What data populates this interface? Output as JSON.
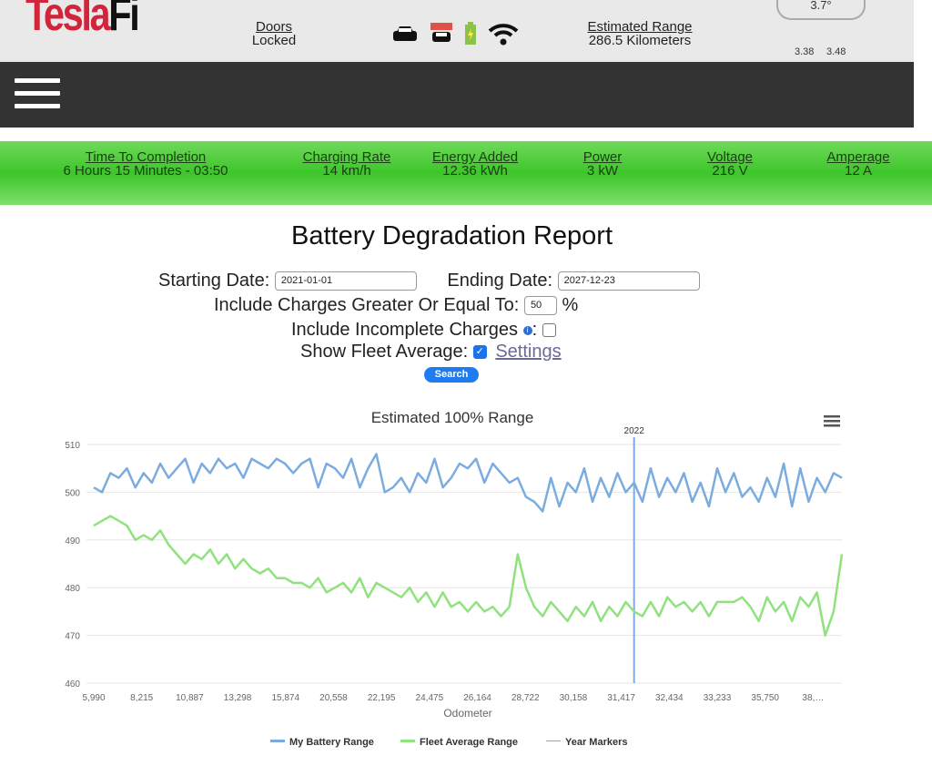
{
  "header": {
    "logo_a": "Tesla",
    "logo_b": "Fi",
    "doors_label": "Doors",
    "doors_value": "Locked",
    "range_label": "Estimated Range",
    "range_value": "286.5 Kilometers",
    "temp": "3.7°",
    "tire_left": "3.38",
    "tire_right": "3.48",
    "icons": [
      "car-icon",
      "calendar-car-icon",
      "battery-charging-icon",
      "wifi-icon"
    ]
  },
  "charging": [
    {
      "label": "Time To Completion",
      "value": "6 Hours 15 Minutes - 03:50"
    },
    {
      "label": "Charging Rate",
      "value": "14 km/h"
    },
    {
      "label": "Energy Added",
      "value": "12.36 kWh"
    },
    {
      "label": "Power",
      "value": "3 kW"
    },
    {
      "label": "Voltage",
      "value": "216 V"
    },
    {
      "label": "Amperage",
      "value": "12 A"
    }
  ],
  "report": {
    "title": "Battery Degradation Report",
    "start_label": "Starting Date:",
    "start_value": "2021-01-01",
    "end_label": "Ending Date:",
    "end_value": "2027-12-23",
    "charges_label": "Include Charges Greater Or Equal To:",
    "charges_value": "50",
    "pct": "%",
    "incomplete_label": "Include Incomplete Charges",
    "info": "i",
    "colon": ":",
    "fleet_label": "Show Fleet Average:",
    "fleet_checked": true,
    "settings": "Settings",
    "search": "Search"
  },
  "chart_data": {
    "type": "line",
    "title": "Estimated 100% Range",
    "xlabel": "Odometer",
    "ylabel": "",
    "ylim": [
      460,
      510
    ],
    "yticks": [
      460,
      470,
      480,
      490,
      500,
      510
    ],
    "xtick_labels": [
      "5,990",
      "8,215",
      "10,887",
      "13,298",
      "15,874",
      "20,558",
      "22,195",
      "24,475",
      "26,164",
      "28,722",
      "30,158",
      "31,417",
      "32,434",
      "33,233",
      "35,750",
      "38,…"
    ],
    "series": [
      {
        "name": "My Battery Range",
        "color": "#7cacdf",
        "values": [
          501,
          500,
          504,
          503,
          505,
          501,
          504,
          502,
          506,
          503,
          505,
          507,
          502,
          506,
          504,
          507,
          505,
          506,
          503,
          507,
          506,
          505,
          507,
          506,
          504,
          506,
          507,
          501,
          506,
          505,
          503,
          507,
          501,
          505,
          508,
          500,
          501,
          503,
          500,
          504,
          502,
          507,
          501,
          503,
          506,
          505,
          507,
          502,
          506,
          504,
          502,
          503,
          499,
          498,
          496,
          503,
          497,
          502,
          500,
          505,
          498,
          503,
          499,
          504,
          500,
          502,
          498,
          505,
          499,
          503,
          500,
          504,
          498,
          502,
          497,
          505,
          500,
          504,
          499,
          501,
          498,
          503,
          499,
          506,
          497,
          505,
          498,
          503,
          500,
          504,
          503
        ]
      },
      {
        "name": "Fleet Average Range",
        "color": "#90e27e",
        "values": [
          493,
          494,
          495,
          494,
          493,
          490,
          491,
          490,
          492,
          489,
          487,
          485,
          487,
          486,
          488,
          485,
          487,
          484,
          486,
          484,
          483,
          484,
          482,
          482,
          481,
          481,
          480,
          482,
          479,
          480,
          481,
          479,
          482,
          478,
          481,
          480,
          479,
          478,
          480,
          477,
          479,
          476,
          479,
          476,
          477,
          475,
          477,
          475,
          476,
          474,
          476,
          487,
          480,
          476,
          474,
          477,
          475,
          473,
          476,
          474,
          477,
          473,
          476,
          474,
          477,
          475,
          474,
          477,
          474,
          478,
          476,
          477,
          475,
          477,
          474,
          477,
          477,
          477,
          478,
          476,
          473,
          478,
          475,
          477,
          473,
          478,
          476,
          479,
          470,
          475,
          487
        ]
      }
    ],
    "year_markers": {
      "name": "Year Markers",
      "color": "#7cacdf",
      "marks": [
        {
          "label": "2022",
          "index": 65
        }
      ]
    },
    "legend": "bottom-center",
    "grid": true
  }
}
